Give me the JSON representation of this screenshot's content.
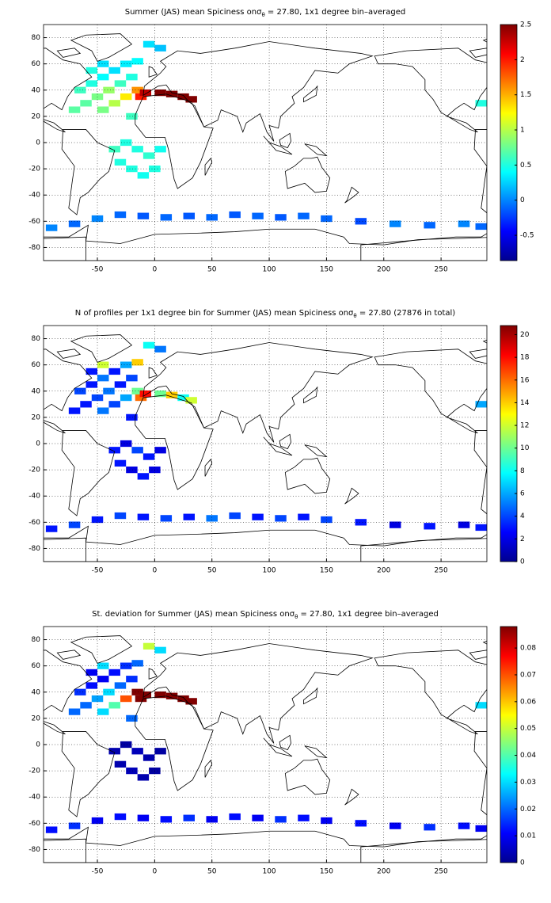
{
  "chart_data": [
    {
      "type": "heatmap-map",
      "title": [
        "Summer (JAS) mean Spiciness on",
        "σ",
        "θ",
        " = 27.80, 1x1 degree bin–averaged"
      ],
      "xlim": [
        -97,
        290
      ],
      "ylim": [
        -90,
        90
      ],
      "xticks": [
        -50,
        0,
        50,
        100,
        150,
        200,
        250
      ],
      "yticks": [
        -80,
        -60,
        -40,
        -20,
        0,
        20,
        40,
        60,
        80
      ],
      "clim": [
        -0.86,
        2.5
      ],
      "cticks": [
        -0.5,
        0,
        0.5,
        1,
        1.5,
        2,
        2.5
      ],
      "colormap": "jet",
      "grid": true,
      "x": [
        -65,
        -55,
        -45,
        -35,
        -25,
        -15,
        -55,
        -45,
        -60,
        -50,
        -40,
        -30,
        -20,
        -70,
        -45,
        -35,
        -25,
        -15,
        -12,
        -8,
        -20,
        -5,
        5,
        5,
        15,
        25,
        32,
        -35,
        -25,
        -15,
        -5,
        5,
        -30,
        -20,
        -10,
        0,
        -90,
        -70,
        -50,
        -30,
        -10,
        10,
        30,
        50,
        70,
        90,
        110,
        130,
        150,
        180,
        210,
        240,
        270,
        285,
        285
      ],
      "y": [
        40,
        45,
        50,
        55,
        60,
        62,
        55,
        60,
        30,
        35,
        40,
        45,
        50,
        25,
        25,
        30,
        35,
        40,
        35,
        38,
        20,
        75,
        72,
        38,
        37,
        35,
        33,
        -5,
        0,
        -5,
        -10,
        -5,
        -15,
        -20,
        -25,
        -20,
        -65,
        -62,
        -58,
        -55,
        -56,
        -57,
        -56,
        -57,
        -55,
        -56,
        -57,
        -56,
        -58,
        -60,
        -62,
        -63,
        -62,
        -64,
        30
      ],
      "values": [
        0.6,
        0.5,
        0.4,
        0.3,
        0.35,
        0.4,
        0.5,
        0.3,
        0.7,
        0.8,
        0.9,
        0.6,
        0.5,
        0.7,
        0.8,
        1.0,
        1.3,
        1.6,
        2.0,
        2.3,
        0.6,
        0.3,
        0.2,
        2.5,
        2.5,
        2.5,
        2.5,
        0.6,
        0.5,
        0.5,
        0.55,
        0.45,
        0.5,
        0.5,
        0.45,
        0.5,
        0.0,
        -0.1,
        0.0,
        -0.1,
        -0.15,
        -0.1,
        -0.15,
        -0.1,
        -0.15,
        -0.1,
        -0.15,
        -0.1,
        -0.1,
        -0.2,
        0.0,
        -0.1,
        0.0,
        -0.1,
        0.5
      ]
    },
    {
      "type": "heatmap-map",
      "title": [
        "N of profiles per 1x1 degree bin for Summer (JAS) mean Spiciness on",
        "σ",
        "θ",
        " = 27.80 (27876 in total)"
      ],
      "xlim": [
        -97,
        290
      ],
      "ylim": [
        -90,
        90
      ],
      "xticks": [
        -50,
        0,
        50,
        100,
        150,
        200,
        250
      ],
      "yticks": [
        -80,
        -60,
        -40,
        -20,
        0,
        20,
        40,
        60,
        80
      ],
      "clim": [
        0,
        20.8
      ],
      "cticks": [
        0,
        2,
        4,
        6,
        8,
        10,
        12,
        14,
        16,
        18,
        20
      ],
      "colormap": "jet",
      "grid": true,
      "x": [
        -65,
        -55,
        -45,
        -35,
        -25,
        -15,
        -55,
        -45,
        -60,
        -50,
        -40,
        -30,
        -20,
        -70,
        -45,
        -35,
        -25,
        -15,
        -12,
        -8,
        -20,
        -5,
        5,
        5,
        15,
        25,
        32,
        -35,
        -25,
        -15,
        -5,
        5,
        -30,
        -20,
        -10,
        0,
        -90,
        -70,
        -50,
        -30,
        -10,
        10,
        30,
        50,
        70,
        90,
        110,
        130,
        150,
        180,
        210,
        240,
        270,
        285,
        285
      ],
      "y": [
        40,
        45,
        50,
        55,
        60,
        62,
        55,
        60,
        30,
        35,
        40,
        45,
        50,
        25,
        25,
        30,
        35,
        40,
        35,
        38,
        20,
        75,
        72,
        38,
        37,
        35,
        33,
        -5,
        0,
        -5,
        -10,
        -5,
        -15,
        -20,
        -25,
        -20,
        -65,
        -62,
        -58,
        -55,
        -56,
        -57,
        -56,
        -57,
        -55,
        -56,
        -57,
        -56,
        -58,
        -60,
        -62,
        -63,
        -62,
        -64,
        30
      ],
      "values": [
        4,
        3,
        5,
        3,
        6,
        14,
        3,
        12,
        3,
        4,
        5,
        3,
        4,
        3,
        5,
        4,
        6,
        10,
        16,
        18,
        3,
        8,
        5,
        10,
        14,
        8,
        12,
        3,
        2,
        4,
        3,
        2,
        3,
        2,
        3,
        2,
        3,
        4,
        3,
        4,
        3,
        4,
        3,
        5,
        4,
        3,
        4,
        3,
        4,
        3,
        2,
        3,
        2,
        3,
        6
      ]
    },
    {
      "type": "heatmap-map",
      "title": [
        "St. deviation for Summer (JAS) mean Spiciness on",
        "σ",
        "θ",
        " = 27.80, 1x1 degree bin–averaged"
      ],
      "xlim": [
        -97,
        290
      ],
      "ylim": [
        -90,
        90
      ],
      "xticks": [
        -50,
        0,
        50,
        100,
        150,
        200,
        250
      ],
      "yticks": [
        -80,
        -60,
        -40,
        -20,
        0,
        20,
        40,
        60,
        80
      ],
      "clim": [
        0,
        0.088
      ],
      "cticks": [
        0,
        0.01,
        0.02,
        0.03,
        0.04,
        0.05,
        0.06,
        0.07,
        0.08
      ],
      "colormap": "jet",
      "grid": true,
      "x": [
        -65,
        -55,
        -45,
        -35,
        -25,
        -15,
        -55,
        -45,
        -60,
        -50,
        -40,
        -30,
        -20,
        -70,
        -45,
        -35,
        -25,
        -15,
        -12,
        -8,
        -20,
        -5,
        5,
        5,
        15,
        25,
        32,
        -35,
        -25,
        -15,
        -5,
        5,
        -30,
        -20,
        -10,
        0,
        -90,
        -70,
        -50,
        -30,
        -10,
        10,
        30,
        50,
        70,
        90,
        110,
        130,
        150,
        180,
        210,
        240,
        270,
        285,
        285
      ],
      "y": [
        40,
        45,
        50,
        55,
        60,
        62,
        55,
        60,
        30,
        35,
        40,
        45,
        50,
        25,
        25,
        30,
        35,
        40,
        35,
        38,
        20,
        75,
        72,
        38,
        37,
        35,
        33,
        -5,
        0,
        -5,
        -10,
        -5,
        -15,
        -20,
        -25,
        -20,
        -65,
        -62,
        -58,
        -55,
        -56,
        -57,
        -56,
        -57,
        -55,
        -56,
        -57,
        -56,
        -58,
        -60,
        -62,
        -63,
        -62,
        -64,
        30
      ],
      "values": [
        0.015,
        0.012,
        0.01,
        0.012,
        0.015,
        0.02,
        0.01,
        0.03,
        0.02,
        0.025,
        0.03,
        0.02,
        0.015,
        0.02,
        0.03,
        0.04,
        0.07,
        0.088,
        0.088,
        0.088,
        0.02,
        0.05,
        0.03,
        0.088,
        0.088,
        0.088,
        0.088,
        0.004,
        0.003,
        0.005,
        0.004,
        0.003,
        0.004,
        0.005,
        0.004,
        0.003,
        0.012,
        0.015,
        0.01,
        0.012,
        0.01,
        0.012,
        0.015,
        0.01,
        0.012,
        0.01,
        0.015,
        0.012,
        0.01,
        0.012,
        0.01,
        0.015,
        0.012,
        0.01,
        0.03
      ]
    }
  ]
}
